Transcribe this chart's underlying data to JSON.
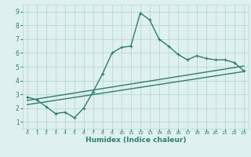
{
  "xlabel": "Humidex (Indice chaleur)",
  "x_values": [
    0,
    1,
    2,
    3,
    4,
    5,
    6,
    7,
    8,
    9,
    10,
    11,
    12,
    13,
    14,
    15,
    16,
    17,
    18,
    19,
    20,
    21,
    22,
    23
  ],
  "line1_y": [
    2.8,
    2.6,
    2.1,
    1.6,
    1.7,
    1.3,
    2.0,
    3.2,
    4.5,
    6.0,
    6.4,
    6.5,
    8.9,
    8.4,
    7.0,
    6.5,
    5.9,
    5.5,
    5.8,
    5.6,
    5.5,
    5.5,
    5.3,
    4.7
  ],
  "line_color": "#2e7d6e",
  "bg_color": "#dff0f0",
  "grid_color": "#b8d8d8",
  "xlim": [
    -0.5,
    23.5
  ],
  "ylim": [
    0.5,
    9.5
  ],
  "yticks": [
    1,
    2,
    3,
    4,
    5,
    6,
    7,
    8,
    9
  ],
  "xticks": [
    0,
    1,
    2,
    3,
    4,
    5,
    6,
    7,
    8,
    9,
    10,
    11,
    12,
    13,
    14,
    15,
    16,
    17,
    18,
    19,
    20,
    21,
    22,
    23
  ],
  "line_width": 1.0,
  "marker": "+",
  "marker_size": 3.5,
  "linear_upper_start_y": 2.55,
  "linear_upper_end_y": 5.05,
  "linear_lower_start_y": 2.25,
  "linear_lower_end_y": 4.65
}
